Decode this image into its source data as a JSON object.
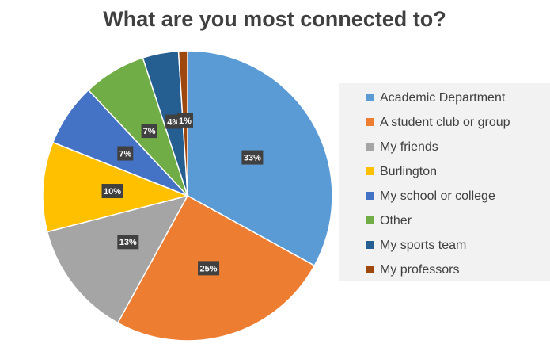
{
  "chart_data": {
    "type": "pie",
    "title": "What are you most connected to?",
    "categories": [
      "Academic Department",
      "A student club or group",
      "My friends",
      "Burlington",
      "My school or college",
      "Other",
      "My sports team",
      "My professors"
    ],
    "values": [
      33,
      25,
      13,
      10,
      7,
      7,
      4,
      1
    ],
    "value_labels": [
      "33%",
      "25%",
      "13%",
      "10%",
      "7%",
      "7%",
      "4%",
      "1%"
    ],
    "colors": [
      "#5b9bd5",
      "#ed7d31",
      "#a5a5a5",
      "#ffc000",
      "#4472c4",
      "#70ad47",
      "#255e91",
      "#9e480e"
    ],
    "legend": "right"
  }
}
